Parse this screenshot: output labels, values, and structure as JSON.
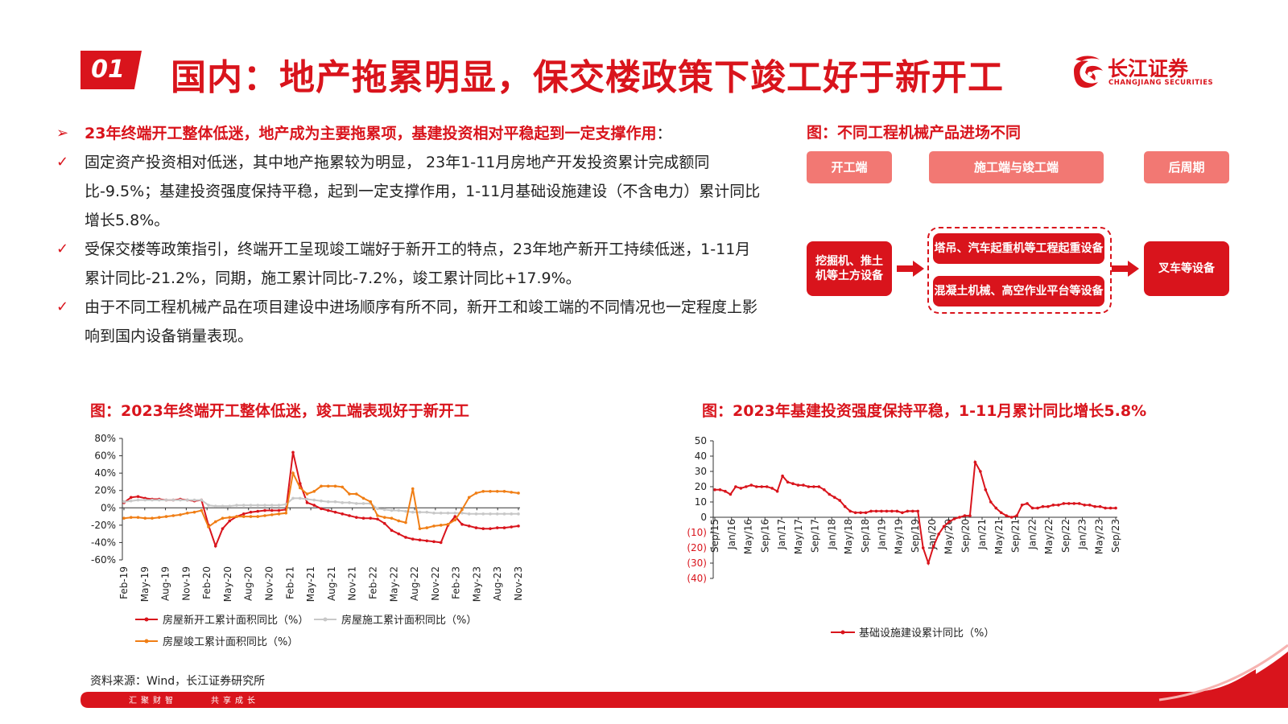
{
  "header": {
    "number": "01",
    "title": "国内：地产拖累明显，保交楼政策下竣工好于新开工",
    "logo_cn": "长江证券",
    "logo_en": "CHANGJIANG SECURITIES"
  },
  "bullets": [
    {
      "mark": "➢",
      "text": "23年终端开工整体低迷，地产成为主要拖累项，基建投资相对平稳起到一定支撑作用",
      "suffix": "："
    },
    {
      "mark": "✓",
      "text": "固定资产投资相对低迷，其中地产拖累较为明显， 23年1-11月房地产开发投资累计完成额同比-9.5%；基建投资强度保持平稳，起到一定支撑作用，1-11月基础设施建设（不含电力）累计同比增长5.8%。"
    },
    {
      "mark": "✓",
      "text": "受保交楼等政策指引，终端开工呈现竣工端好于新开工的特点，23年地产新开工持续低迷，1-11月累计同比-21.2%，同期，施工累计同比-7.2%，竣工累计同比+17.9%。"
    },
    {
      "mark": "✓",
      "text": "由于不同工程机械产品在项目建设中进场顺序有所不同，新开工和竣工端的不同情况也一定程度上影响到国内设备销量表现。"
    }
  ],
  "flow": {
    "title": "图：不同工程机械产品进场不同",
    "stage1": "开工端",
    "stage2": "施工端与竣工端",
    "stage3": "后周期",
    "box1_line1": "挖掘机、推土",
    "box1_line2": "机等土方设备",
    "box2": "塔吊、汽车起重机等工程起重设备",
    "box3": "混凝土机械、高空作业平台等设备",
    "box4": "叉车等设备",
    "color_light": "#f27873",
    "color_main": "#d9141c"
  },
  "chart_data": [
    {
      "type": "line",
      "title": "图：2023年终端开工整体低迷，竣工端表现好于新开工",
      "ylim": [
        -60,
        80
      ],
      "yticks": [
        "80%",
        "60%",
        "40%",
        "20%",
        "0%",
        "-20%",
        "-40%",
        "-60%"
      ],
      "xticks": [
        "Feb-19",
        "May-19",
        "Aug-19",
        "Nov-19",
        "Feb-20",
        "May-20",
        "Aug-20",
        "Nov-20",
        "Feb-21",
        "May-21",
        "Aug-21",
        "Nov-21",
        "Feb-22",
        "May-22",
        "Aug-22",
        "Nov-22",
        "Feb-23",
        "May-23",
        "Aug-23",
        "Nov-23"
      ],
      "series": [
        {
          "name": "房屋新开工累计面积同比（%）",
          "color": "#d9141c",
          "values": [
            6,
            12,
            13,
            11,
            10,
            10,
            9,
            9,
            10,
            9,
            8,
            9,
            -20,
            -44,
            -24,
            -15,
            -10,
            -7,
            -5,
            -4,
            -3,
            -3,
            -3,
            -2,
            64,
            28,
            6,
            3,
            -1,
            -3,
            -5,
            -7,
            -9,
            -11,
            -12,
            -12,
            -13,
            -18,
            -26,
            -30,
            -34,
            -36,
            -37,
            -38,
            -39,
            -40,
            -20,
            -10,
            -19,
            -21,
            -23,
            -24,
            -24,
            -23,
            -23,
            -22,
            -21
          ]
        },
        {
          "name": "房屋施工累计面积同比（%）",
          "color": "#c8c8c8",
          "values": [
            7,
            8,
            9,
            9,
            9,
            9,
            9,
            9,
            9,
            9,
            9,
            9,
            3,
            2,
            2,
            2,
            3,
            3,
            3,
            3,
            3,
            3,
            3,
            4,
            11,
            11,
            10,
            9,
            8,
            7,
            7,
            6,
            6,
            5,
            5,
            5,
            -1,
            -2,
            -3,
            -3,
            -4,
            -5,
            -5,
            -5,
            -6,
            -6,
            -6,
            -6,
            -6,
            -7,
            -7,
            -7,
            -7,
            -7,
            -7,
            -7,
            -7
          ]
        },
        {
          "name": "房屋竣工累计面积同比（%）",
          "color": "#f07e15",
          "values": [
            -12,
            -11,
            -11,
            -12,
            -12,
            -11,
            -10,
            -9,
            -8,
            -6,
            -5,
            -3,
            -22,
            -16,
            -12,
            -11,
            -10,
            -10,
            -10,
            -10,
            -9,
            -8,
            -7,
            -6,
            40,
            23,
            16,
            19,
            25,
            25,
            25,
            24,
            16,
            16,
            11,
            7,
            -9,
            -11,
            -12,
            -15,
            -17,
            22,
            -24,
            -23,
            -21,
            -20,
            -19,
            -14,
            -2,
            12,
            17,
            19,
            19,
            19,
            19,
            18,
            17
          ]
        }
      ]
    },
    {
      "type": "line",
      "title": "图：2023年基建投资强度保持平稳，1-11月累计同比增长5.8%",
      "ylim": [
        -40,
        50
      ],
      "yticks": [
        "50",
        "40",
        "30",
        "20",
        "10",
        "0",
        "(10)",
        "(20)",
        "(30)",
        "(40)"
      ],
      "negative_tick_color": "#d9141c",
      "xticks": [
        "Sep/15",
        "Jan/16",
        "May/16",
        "Sep/16",
        "Jan/17",
        "May/17",
        "Sep/17",
        "Jan/18",
        "May/18",
        "Sep/18",
        "Jan/19",
        "May/19",
        "Sep/19",
        "Jan/20",
        "May/20",
        "Sep/20",
        "Jan/21",
        "May/21",
        "Sep/21",
        "Jan/22",
        "May/22",
        "Sep/22",
        "Jan/23",
        "May/23",
        "Sep/23"
      ],
      "series": [
        {
          "name": "基础设施建设累计同比（%）",
          "color": "#d9141c",
          "values": [
            18,
            18,
            17,
            15,
            20,
            19,
            20,
            21,
            20,
            20,
            20,
            19,
            17,
            27,
            23,
            22,
            21,
            21,
            20,
            20,
            20,
            18,
            15,
            13,
            11,
            7,
            4,
            3,
            3,
            3,
            4,
            4,
            4,
            4,
            4,
            4,
            3,
            4,
            4,
            4,
            -20,
            -30,
            -19,
            -11,
            -6,
            -3,
            -1,
            0,
            1,
            1,
            36,
            30,
            18,
            10,
            6,
            3,
            1,
            0,
            1,
            8,
            9,
            6,
            6,
            7,
            7,
            8,
            8,
            9,
            9,
            9,
            9,
            8,
            8,
            7,
            7,
            6,
            6,
            6
          ]
        }
      ]
    }
  ],
  "source": "资料来源：Wind，长江证券研究所",
  "footer": {
    "left": "汇聚财智",
    "right": "共享成长"
  },
  "brand_color": "#d9141c"
}
